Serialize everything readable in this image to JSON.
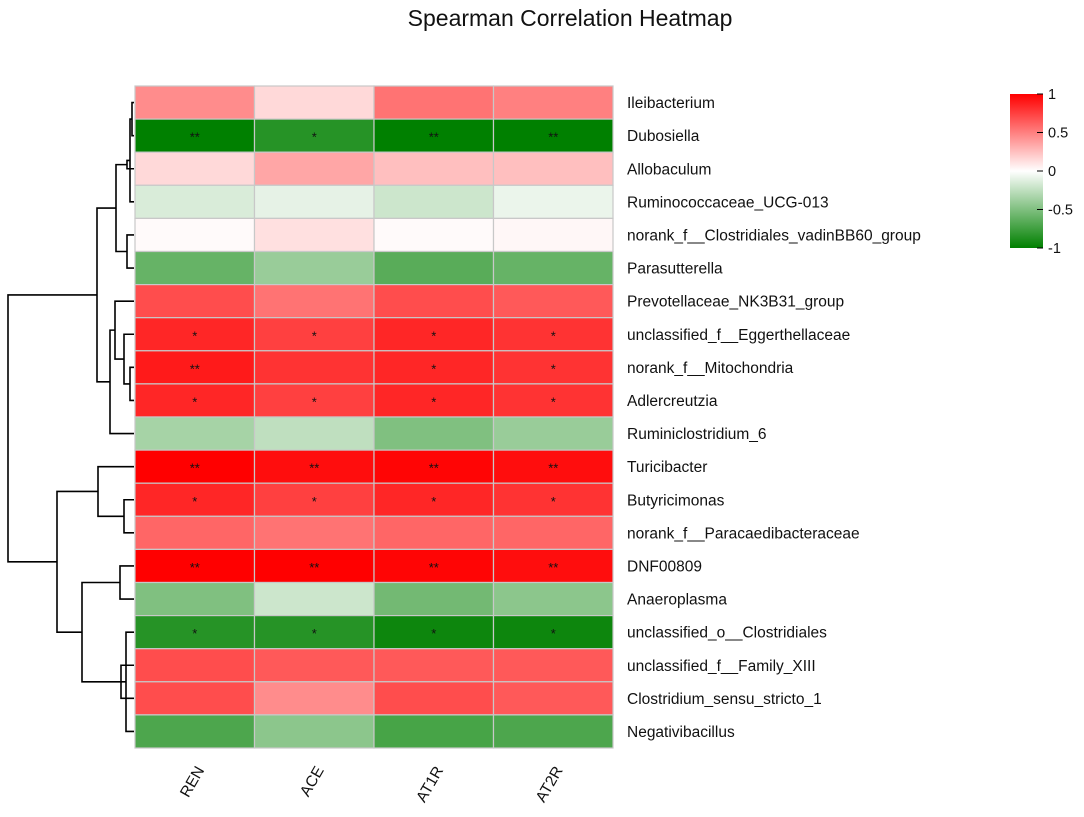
{
  "chart_data": {
    "type": "heatmap",
    "title": "Spearman Correlation Heatmap",
    "columns": [
      "REN",
      "ACE",
      "AT1R",
      "AT2R"
    ],
    "rows": [
      "Ileibacterium",
      "Dubosiella",
      "Allobaculum",
      "Ruminococcaceae_UCG-013",
      "norank_f__Clostridiales_vadinBB60_group",
      "Parasutterella",
      "Prevotellaceae_NK3B31_group",
      "unclassified_f__Eggerthellaceae",
      "norank_f__Mitochondria",
      "Adlercreutzia",
      "Ruminiclostridium_6",
      "Turicibacter",
      "Butyricimonas",
      "norank_f__Paracaedibacteraceae",
      "DNF00809",
      "Anaeroplasma",
      "unclassified_o__Clostridiales",
      "unclassified_f__Family_XIII",
      "Clostridium_sensu_stricto_1",
      "Negativibacillus"
    ],
    "values": [
      [
        0.45,
        0.15,
        0.55,
        0.5
      ],
      [
        -1.0,
        -0.85,
        -1.0,
        -1.0
      ],
      [
        0.15,
        0.35,
        0.25,
        0.25
      ],
      [
        -0.15,
        -0.1,
        -0.2,
        -0.08
      ],
      [
        0.02,
        0.12,
        0.02,
        0.03
      ],
      [
        -0.6,
        -0.4,
        -0.65,
        -0.6
      ],
      [
        0.7,
        0.55,
        0.7,
        0.65
      ],
      [
        0.85,
        0.75,
        0.85,
        0.8
      ],
      [
        0.9,
        0.8,
        0.85,
        0.8
      ],
      [
        0.85,
        0.75,
        0.85,
        0.8
      ],
      [
        -0.35,
        -0.25,
        -0.5,
        -0.4
      ],
      [
        1.0,
        0.95,
        0.98,
        0.95
      ],
      [
        0.85,
        0.75,
        0.85,
        0.8
      ],
      [
        0.6,
        0.55,
        0.6,
        0.6
      ],
      [
        1.0,
        1.0,
        0.98,
        0.95
      ],
      [
        -0.5,
        -0.2,
        -0.55,
        -0.45
      ],
      [
        -0.85,
        -0.85,
        -0.95,
        -0.95
      ],
      [
        0.7,
        0.65,
        0.65,
        0.65
      ],
      [
        0.7,
        0.45,
        0.7,
        0.65
      ],
      [
        -0.7,
        -0.45,
        -0.72,
        -0.7
      ]
    ],
    "significance": [
      [
        "",
        "",
        "",
        ""
      ],
      [
        "**",
        "*",
        "**",
        "**"
      ],
      [
        "",
        "",
        "",
        ""
      ],
      [
        "",
        "",
        "",
        ""
      ],
      [
        "",
        "",
        "",
        ""
      ],
      [
        "",
        "",
        "",
        ""
      ],
      [
        "",
        "",
        "",
        ""
      ],
      [
        "*",
        "*",
        "*",
        "*"
      ],
      [
        "**",
        "",
        "*",
        "*"
      ],
      [
        "*",
        "*",
        "*",
        "*"
      ],
      [
        "",
        "",
        "",
        ""
      ],
      [
        "**",
        "**",
        "**",
        "**"
      ],
      [
        "*",
        "*",
        "*",
        "*"
      ],
      [
        "",
        "",
        "",
        ""
      ],
      [
        "**",
        "**",
        "**",
        "**"
      ],
      [
        "",
        "",
        "",
        ""
      ],
      [
        "*",
        "*",
        "*",
        "*"
      ],
      [
        "",
        "",
        "",
        ""
      ],
      [
        "",
        "",
        "",
        ""
      ],
      [
        "",
        "",
        "",
        ""
      ]
    ],
    "color_scale": {
      "low": "#008000",
      "mid": "#ffffff",
      "high": "#ff0000",
      "range": [
        -1,
        1
      ]
    },
    "legend": {
      "ticks": [
        1,
        0.5,
        0,
        -0.5,
        -1
      ],
      "tick_labels": [
        "1",
        "0.5",
        "0",
        "-0.5",
        "-1"
      ],
      "placement": "top-right"
    },
    "cell_border_color": "#c8c8c8",
    "dendrogram_color": "#000000"
  }
}
